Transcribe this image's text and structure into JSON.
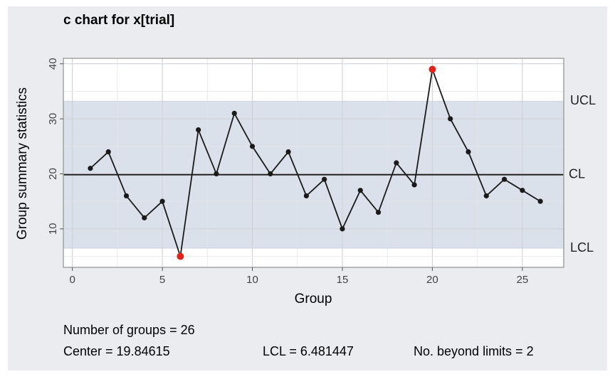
{
  "chart_data": {
    "type": "line",
    "title": "c chart for x[trial]",
    "xlabel": "Group",
    "ylabel": "Group summary statistics",
    "xlim": [
      -0.5,
      27.3
    ],
    "ylim": [
      3.0,
      41.0
    ],
    "xticks": [
      0,
      5,
      10,
      15,
      20,
      25
    ],
    "yticks": [
      10,
      20,
      30,
      40
    ],
    "limits": {
      "ucl": 33.21086,
      "cl": 19.84615,
      "lcl": 6.481447
    },
    "limit_labels": {
      "ucl": "UCL",
      "cl": "CL",
      "lcl": "LCL"
    },
    "x": [
      1,
      2,
      3,
      4,
      5,
      6,
      7,
      8,
      9,
      10,
      11,
      12,
      13,
      14,
      15,
      16,
      17,
      18,
      19,
      20,
      21,
      22,
      23,
      24,
      25,
      26
    ],
    "values": [
      21,
      24,
      16,
      12,
      15,
      5,
      28,
      20,
      31,
      25,
      20,
      24,
      16,
      19,
      10,
      17,
      13,
      22,
      18,
      39,
      30,
      24,
      16,
      19,
      17,
      15
    ],
    "out_of_control": [
      6,
      20
    ],
    "colors": {
      "point": "#1a1a1a",
      "out": "#e2231a",
      "band": "#dbe1ea",
      "line": "#1a1a1a"
    }
  },
  "stats": {
    "groups": "Number of groups = 26",
    "center": "Center = 19.84615",
    "lcl": "LCL = 6.481447",
    "beyond": "No. beyond limits = 2"
  }
}
